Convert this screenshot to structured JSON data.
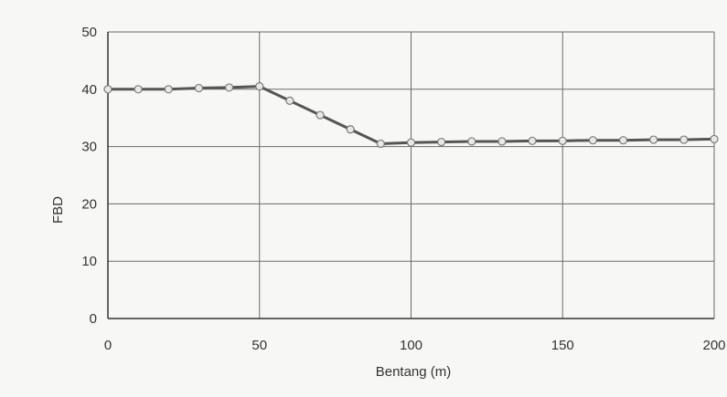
{
  "chart_data": {
    "type": "line",
    "title": "",
    "xlabel": "Bentang (m)",
    "ylabel": "FBD",
    "xlim": [
      0,
      200
    ],
    "ylim": [
      0,
      50
    ],
    "x_ticks": [
      0,
      50,
      100,
      150,
      200
    ],
    "y_ticks": [
      0,
      10,
      20,
      30,
      40,
      50
    ],
    "grid": true,
    "legend": "none",
    "series": [
      {
        "color": "#555555",
        "marker": "circle",
        "points": [
          {
            "x": 0,
            "y": 40
          },
          {
            "x": 10,
            "y": 40
          },
          {
            "x": 20,
            "y": 40
          },
          {
            "x": 30,
            "y": 40.2
          },
          {
            "x": 40,
            "y": 40.3
          },
          {
            "x": 50,
            "y": 40.5
          },
          {
            "x": 60,
            "y": 38
          },
          {
            "x": 70,
            "y": 35.5
          },
          {
            "x": 80,
            "y": 33
          },
          {
            "x": 90,
            "y": 30.5
          },
          {
            "x": 100,
            "y": 30.7
          },
          {
            "x": 110,
            "y": 30.8
          },
          {
            "x": 120,
            "y": 30.9
          },
          {
            "x": 130,
            "y": 30.9
          },
          {
            "x": 140,
            "y": 31
          },
          {
            "x": 150,
            "y": 31
          },
          {
            "x": 160,
            "y": 31.1
          },
          {
            "x": 170,
            "y": 31.1
          },
          {
            "x": 180,
            "y": 31.2
          },
          {
            "x": 190,
            "y": 31.2
          },
          {
            "x": 200,
            "y": 31.3
          }
        ]
      }
    ]
  }
}
